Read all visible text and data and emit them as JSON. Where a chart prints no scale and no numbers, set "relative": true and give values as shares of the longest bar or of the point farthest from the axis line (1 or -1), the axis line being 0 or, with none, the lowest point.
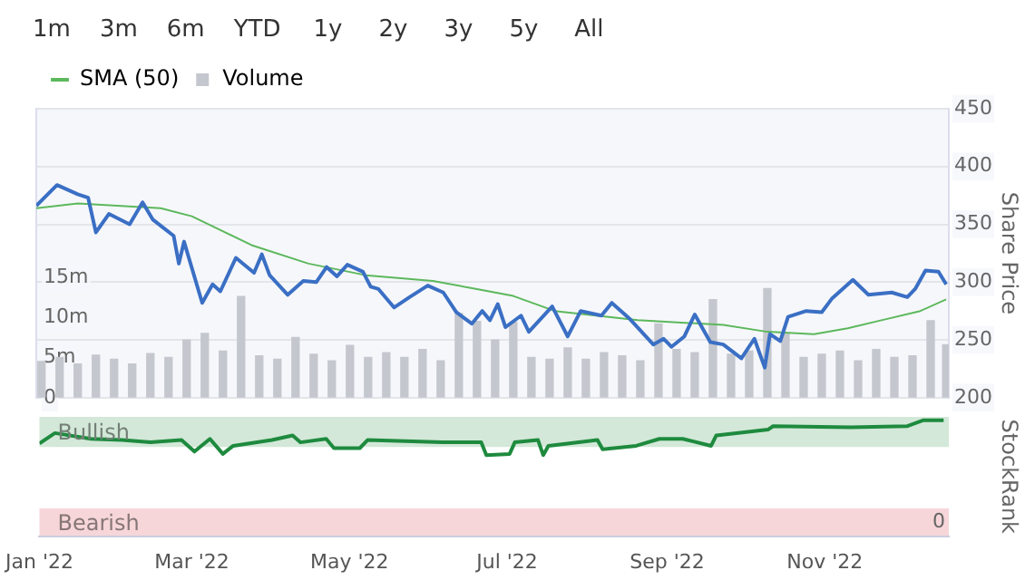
{
  "chart_data": [
    {
      "type": "line",
      "annotations": [
        "1m",
        "3m",
        "6m",
        "YTD",
        "1y",
        "2y",
        "3y",
        "5y",
        "All"
      ],
      "y2label": "Share Price",
      "xlim": [
        "2022-01-01",
        "2022-12-19"
      ],
      "ylim": [
        0,
        36
      ],
      "yticks": [
        {
          "value": 0,
          "label": "0"
        },
        {
          "value": 5,
          "label": "5m"
        },
        {
          "value": 10,
          "label": "10m"
        },
        {
          "value": 15,
          "label": "15m"
        }
      ],
      "y2lim": [
        200,
        450
      ],
      "y2ticks": [
        200,
        250,
        300,
        350,
        400,
        450
      ],
      "grid": "y2",
      "legend": "top left",
      "tick_labels": "y",
      "series": [
        {
          "type": "line",
          "name": "SMA (50)",
          "color": "#5cb85c",
          "axis": "y2",
          "x": [
            "2022-01-01",
            "2022-01-17",
            "2022-02-18",
            "2022-03-02",
            "2022-03-25",
            "2022-04-16",
            "2022-05-08",
            "2022-06-03",
            "2022-06-20",
            "2022-07-04",
            "2022-07-20",
            "2022-08-21",
            "2022-09-23",
            "2022-10-10",
            "2022-10-28",
            "2022-11-10",
            "2022-11-23",
            "2022-12-08",
            "2022-12-18"
          ],
          "values": [
            364,
            368,
            364,
            357,
            332,
            316,
            306,
            301,
            294,
            288,
            275,
            267,
            263,
            257,
            255,
            260,
            267,
            275,
            285
          ]
        },
        {
          "type": "bar",
          "name": "Volume",
          "color": "#c4c7ce",
          "x": [
            "2022-01-03",
            "2022-01-10",
            "2022-01-17",
            "2022-01-24",
            "2022-01-31",
            "2022-02-07",
            "2022-02-14",
            "2022-02-21",
            "2022-02-28",
            "2022-03-07",
            "2022-03-14",
            "2022-03-21",
            "2022-03-28",
            "2022-04-04",
            "2022-04-11",
            "2022-04-18",
            "2022-04-25",
            "2022-05-02",
            "2022-05-09",
            "2022-05-16",
            "2022-05-23",
            "2022-05-30",
            "2022-06-06",
            "2022-06-13",
            "2022-06-20",
            "2022-06-27",
            "2022-07-04",
            "2022-07-11",
            "2022-07-18",
            "2022-07-25",
            "2022-08-01",
            "2022-08-08",
            "2022-08-15",
            "2022-08-22",
            "2022-08-29",
            "2022-09-05",
            "2022-09-12",
            "2022-09-19",
            "2022-09-26",
            "2022-10-03",
            "2022-10-10",
            "2022-10-17",
            "2022-10-24",
            "2022-10-31",
            "2022-11-07",
            "2022-11-14",
            "2022-11-21",
            "2022-11-28",
            "2022-12-05",
            "2022-12-12",
            "2022-12-18"
          ],
          "values": [
            4.5,
            5,
            4.2,
            5.3,
            4.8,
            4.2,
            5.5,
            5,
            7.2,
            8,
            5.8,
            12.6,
            5.2,
            4.8,
            7.5,
            5.4,
            4.6,
            6.5,
            5,
            5.6,
            5,
            6,
            4.6,
            10.5,
            9.5,
            7.2,
            9.4,
            5,
            4.8,
            6.2,
            4.8,
            5.6,
            5.2,
            4.6,
            9.2,
            6,
            5.6,
            12.2,
            5.4,
            5.8,
            13.6,
            8,
            5,
            5.4,
            5.8,
            4.6,
            6,
            5,
            5.2,
            9.6,
            6.6
          ]
        },
        {
          "type": "line",
          "color": "#3a6fc4",
          "axis": "y2",
          "x": [
            "2022-01-01",
            "2022-01-09",
            "2022-01-17",
            "2022-01-21",
            "2022-01-24",
            "2022-01-29",
            "2022-02-06",
            "2022-02-11",
            "2022-02-15",
            "2022-02-23",
            "2022-02-25",
            "2022-02-27",
            "2022-03-06",
            "2022-03-10",
            "2022-03-13",
            "2022-03-19",
            "2022-03-26",
            "2022-03-29",
            "2022-04-01",
            "2022-04-08",
            "2022-04-14",
            "2022-04-19",
            "2022-04-23",
            "2022-04-27",
            "2022-05-01",
            "2022-05-07",
            "2022-05-10",
            "2022-05-13",
            "2022-05-19",
            "2022-05-25",
            "2022-06-01",
            "2022-06-07",
            "2022-06-12",
            "2022-06-18",
            "2022-06-22",
            "2022-06-25",
            "2022-06-28",
            "2022-07-01",
            "2022-07-07",
            "2022-07-10",
            "2022-07-19",
            "2022-07-25",
            "2022-07-30",
            "2022-08-07",
            "2022-08-11",
            "2022-08-18",
            "2022-08-27",
            "2022-08-31",
            "2022-09-03",
            "2022-09-08",
            "2022-09-12",
            "2022-09-18",
            "2022-09-23",
            "2022-09-30",
            "2022-10-05",
            "2022-10-09",
            "2022-10-11",
            "2022-10-15",
            "2022-10-18",
            "2022-10-25",
            "2022-10-31",
            "2022-11-04",
            "2022-11-12",
            "2022-11-18",
            "2022-11-27",
            "2022-12-03",
            "2022-12-06",
            "2022-12-10",
            "2022-12-15",
            "2022-12-18"
          ],
          "values": [
            366,
            384,
            376,
            373,
            343,
            359,
            350,
            369,
            354,
            340,
            316,
            335,
            282,
            298,
            292,
            321,
            308,
            324,
            306,
            289,
            301,
            300,
            313,
            305,
            315,
            309,
            296,
            294,
            278,
            287,
            297,
            291,
            274,
            264,
            275,
            267,
            281,
            261,
            271,
            257,
            279,
            253,
            275,
            271,
            282,
            268,
            246,
            251,
            244,
            253,
            272,
            248,
            246,
            234,
            251,
            226,
            255,
            249,
            270,
            275,
            274,
            286,
            302,
            289,
            291,
            287,
            294,
            310,
            309,
            298
          ]
        }
      ]
    },
    {
      "type": "line",
      "relative": true,
      "ylabel": "StockRank",
      "annotations": [
        "0"
      ],
      "tick_labels": "x",
      "xlim": [
        "2022-01-01",
        "2022-12-19"
      ],
      "xticks": [
        {
          "value": "2022-01-01",
          "label": "Jan '22"
        },
        {
          "value": "2022-03-01",
          "label": "Mar '22"
        },
        {
          "value": "2022-05-01",
          "label": "May '22"
        },
        {
          "value": "2022-07-01",
          "label": "Jul '22"
        },
        {
          "value": "2022-09-01",
          "label": "Sep '22"
        },
        {
          "value": "2022-11-01",
          "label": "Nov '22"
        }
      ],
      "bands": [
        {
          "axis": "y",
          "from": 0.77,
          "to": 1.03,
          "label": "Bullish",
          "color": "#d3e8d8"
        },
        {
          "axis": "y",
          "from": 0,
          "to": 0.24,
          "label": "Bearish",
          "color": "#f6d6d9"
        }
      ],
      "series": [
        {
          "color": "#1e8a3e",
          "x": [
            "2022-01-01",
            "2022-01-07",
            "2022-01-21",
            "2022-02-02",
            "2022-02-13",
            "2022-02-25",
            "2022-03-02",
            "2022-03-08",
            "2022-03-13",
            "2022-03-17",
            "2022-04-01",
            "2022-04-09",
            "2022-04-12",
            "2022-04-22",
            "2022-04-25",
            "2022-05-05",
            "2022-05-08",
            "2022-06-06",
            "2022-06-21",
            "2022-06-23",
            "2022-07-02",
            "2022-07-04",
            "2022-07-13",
            "2022-07-15",
            "2022-07-17",
            "2022-08-05",
            "2022-08-07",
            "2022-08-20",
            "2022-08-29",
            "2022-09-07",
            "2022-09-18",
            "2022-09-20",
            "2022-10-10",
            "2022-10-12",
            "2022-11-11",
            "2022-12-03",
            "2022-12-09",
            "2022-12-17"
          ],
          "values": [
            0.8,
            0.89,
            0.84,
            0.83,
            0.81,
            0.83,
            0.73,
            0.84,
            0.71,
            0.78,
            0.83,
            0.87,
            0.81,
            0.84,
            0.76,
            0.76,
            0.83,
            0.81,
            0.81,
            0.7,
            0.71,
            0.81,
            0.83,
            0.7,
            0.78,
            0.83,
            0.75,
            0.78,
            0.84,
            0.84,
            0.78,
            0.87,
            0.92,
            0.95,
            0.94,
            0.95,
            1,
            1
          ]
        }
      ]
    }
  ]
}
